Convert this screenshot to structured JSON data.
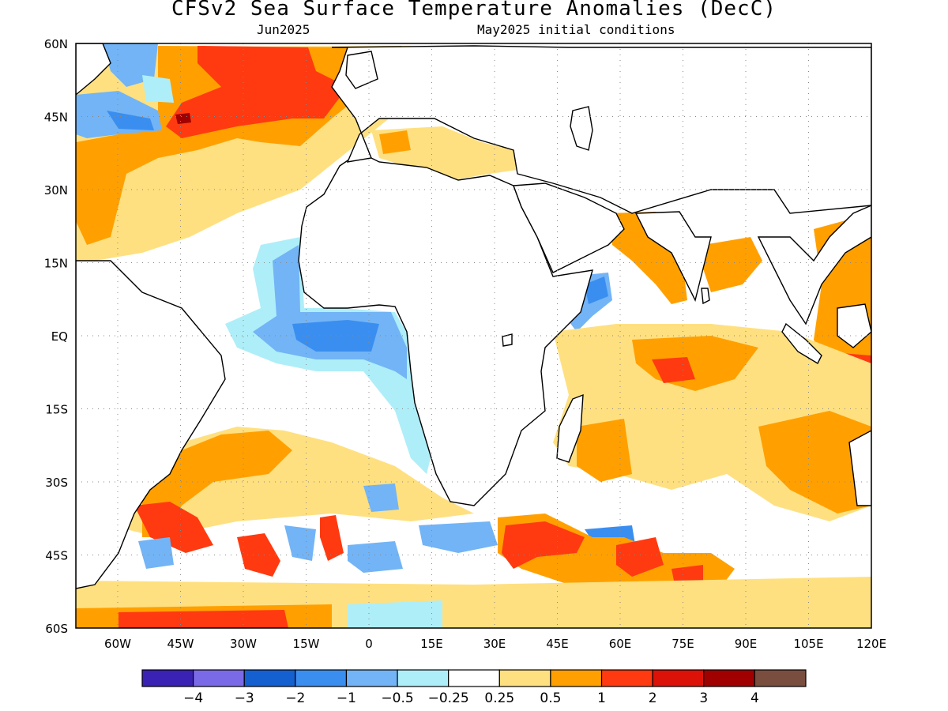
{
  "title": "CFSv2 Sea Surface Temperature Anomalies (DecC)",
  "subtitle_left": "Jun2025",
  "subtitle_right": "May2025 initial conditions",
  "map": {
    "lon_range": [
      -70,
      120
    ],
    "lat_range": [
      -60,
      60
    ],
    "lat_labels": [
      {
        "lat": 60,
        "label": "60N"
      },
      {
        "lat": 45,
        "label": "45N"
      },
      {
        "lat": 30,
        "label": "30N"
      },
      {
        "lat": 15,
        "label": "15N"
      },
      {
        "lat": 0,
        "label": "EQ"
      },
      {
        "lat": -15,
        "label": "15S"
      },
      {
        "lat": -30,
        "label": "30S"
      },
      {
        "lat": -45,
        "label": "45S"
      },
      {
        "lat": -60,
        "label": "60S"
      }
    ],
    "lon_labels": [
      {
        "lon": -60,
        "label": "60W"
      },
      {
        "lon": -45,
        "label": "45W"
      },
      {
        "lon": -30,
        "label": "30W"
      },
      {
        "lon": -15,
        "label": "15W"
      },
      {
        "lon": 0,
        "label": "0"
      },
      {
        "lon": 15,
        "label": "15E"
      },
      {
        "lon": 30,
        "label": "30E"
      },
      {
        "lon": 45,
        "label": "45E"
      },
      {
        "lon": 60,
        "label": "60E"
      },
      {
        "lon": 75,
        "label": "75E"
      },
      {
        "lon": 90,
        "label": "90E"
      },
      {
        "lon": 105,
        "label": "105E"
      },
      {
        "lon": 120,
        "label": "120E"
      }
    ]
  },
  "colorbar": {
    "colors": [
      "#3a22b4",
      "#7a6ae8",
      "#1560d0",
      "#3a8ef0",
      "#72b4f6",
      "#aeeef8",
      "#ffffff",
      "#ffe080",
      "#ffa000",
      "#ff3a10",
      "#dc1208",
      "#a00000",
      "#7a4e3e"
    ],
    "labels": [
      "−4",
      "−3",
      "−2",
      "−1",
      "−0.5",
      "−0.25",
      "0.25",
      "0.5",
      "1",
      "2",
      "3",
      "4"
    ]
  }
}
